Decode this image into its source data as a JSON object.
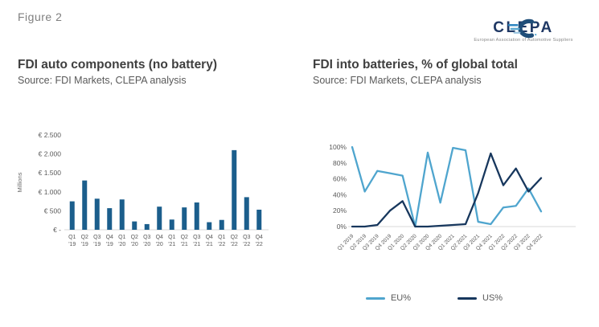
{
  "figure_label": "Figure 2",
  "logo": {
    "name": "CLEPA",
    "tagline": "European Association of Automotive Suppliers",
    "wordmark_color": "#1f3864"
  },
  "left_panel": {
    "title": "FDI auto components (no battery)",
    "source": "Source: FDI Markets, CLEPA analysis"
  },
  "right_panel": {
    "title": "FDI into batteries, % of global total",
    "source": "Source: FDI Markets, CLEPA analysis"
  },
  "chart_data": [
    {
      "type": "bar",
      "title": "FDI auto components (no battery)",
      "ylabel": "Millions",
      "bar_color": "#1b5e8c",
      "ylim": [
        0,
        2500
      ],
      "grid": false,
      "categories": [
        "Q1 '19",
        "Q2 '19",
        "Q3 '19",
        "Q4 '19",
        "Q1 '20",
        "Q2 '20",
        "Q3 '20",
        "Q4 '20",
        "Q1 '21",
        "Q2 '21",
        "Q3 '21",
        "Q4 '21",
        "Q1 '22",
        "Q2 '22",
        "Q3 '22",
        "Q4 '22"
      ],
      "values": [
        750,
        1300,
        820,
        570,
        800,
        220,
        150,
        610,
        270,
        590,
        720,
        200,
        260,
        2100,
        860,
        530
      ],
      "y_ticks": [
        {
          "label": "€ -",
          "value": 0
        },
        {
          "label": "€ 500",
          "value": 500
        },
        {
          "label": "€ 1.000",
          "value": 1000
        },
        {
          "label": "€ 1.500",
          "value": 1500
        },
        {
          "label": "€ 2.000",
          "value": 2000
        },
        {
          "label": "€ 2.500",
          "value": 2500
        }
      ]
    },
    {
      "type": "line",
      "title": "FDI into batteries, % of global total",
      "ylim": [
        0,
        100
      ],
      "grid": false,
      "legend_position": "bottom",
      "categories": [
        "Q1 2019",
        "Q2 2019",
        "Q3 2019",
        "Q4 2019",
        "Q1 2020",
        "Q2 2020",
        "Q3 2020",
        "Q4 2020",
        "Q1 2021",
        "Q2 2021",
        "Q3 2021",
        "Q4 2021",
        "Q1 2022",
        "Q2 2022",
        "Q3 2022",
        "Q4 2022"
      ],
      "series": [
        {
          "name": "EU%",
          "color": "#4fa5ce",
          "values": [
            100,
            44,
            70,
            67,
            64,
            0,
            93,
            30,
            99,
            96,
            6,
            3,
            24,
            26,
            48,
            19
          ]
        },
        {
          "name": "US%",
          "color": "#17375d",
          "values": [
            0,
            0,
            2,
            20,
            32,
            0,
            0,
            1,
            2,
            3,
            42,
            92,
            52,
            73,
            44,
            61
          ]
        }
      ],
      "y_ticks": [
        {
          "label": "0%",
          "value": 0
        },
        {
          "label": "20%",
          "value": 20
        },
        {
          "label": "40%",
          "value": 40
        },
        {
          "label": "60%",
          "value": 60
        },
        {
          "label": "80%",
          "value": 80
        },
        {
          "label": "100%",
          "value": 100
        }
      ]
    }
  ]
}
